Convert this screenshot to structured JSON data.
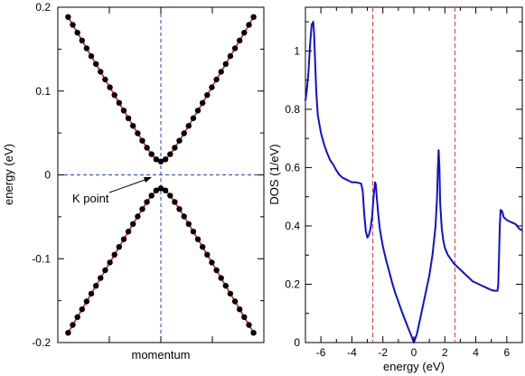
{
  "chart_data": [
    {
      "type": "scatter",
      "xlabel": "momentum",
      "ylabel": "energy  (eV)",
      "ylim": [
        -0.2,
        0.2
      ],
      "xlim": [
        -1,
        1
      ],
      "x_ticks_labeled": false,
      "y_ticks": [
        -0.2,
        -0.1,
        0,
        0.1,
        0.2
      ],
      "y_tick_labels": [
        "-0.2",
        "-0.1",
        "0",
        "0.1",
        "0.2"
      ],
      "gap": 0.016,
      "slope": 0.2085,
      "k_range": [
        -0.9,
        0.9
      ],
      "n_points": 41,
      "marker_color": "#000000",
      "line_color": "#e31a1c",
      "guide_color": "#1f3fd8",
      "annotation": "K point",
      "series": [
        {
          "band": "conduction",
          "sign": 1
        },
        {
          "band": "valence",
          "sign": -1
        }
      ]
    },
    {
      "type": "line",
      "xlabel": "energy (eV)",
      "ylabel": "DOS  (1/eV)",
      "xlim": [
        -7,
        7
      ],
      "ylim": [
        0,
        1.15
      ],
      "x_ticks": [
        -6,
        -4,
        -2,
        0,
        2,
        4,
        6
      ],
      "x_tick_labels": [
        "-6",
        "-4",
        "-2",
        "0",
        "2",
        "4",
        "6"
      ],
      "y_ticks": [
        0,
        0.2,
        0.4,
        0.6,
        0.8,
        1
      ],
      "y_tick_labels": [
        "0",
        "0.2",
        "0.4",
        "0.6",
        "0.8",
        "1"
      ],
      "line_color": "#1010d0",
      "vline_color": "#e83030",
      "vlines": [
        -2.65,
        2.65
      ],
      "series": {
        "x": [
          -7.0,
          -6.9,
          -6.8,
          -6.7,
          -6.6,
          -6.5,
          -6.45,
          -6.4,
          -6.3,
          -6.2,
          -6.0,
          -5.8,
          -5.6,
          -5.4,
          -5.2,
          -5.0,
          -4.8,
          -4.6,
          -4.4,
          -4.2,
          -4.0,
          -3.8,
          -3.6,
          -3.4,
          -3.3,
          -3.2,
          -3.1,
          -3.0,
          -2.9,
          -2.8,
          -2.7,
          -2.6,
          -2.5,
          -2.45,
          -2.4,
          -2.3,
          -2.2,
          -2.0,
          -1.8,
          -1.6,
          -1.4,
          -1.2,
          -1.0,
          -0.8,
          -0.6,
          -0.4,
          -0.2,
          0.0,
          0.2,
          0.4,
          0.6,
          0.8,
          1.0,
          1.2,
          1.4,
          1.5,
          1.55,
          1.6,
          1.65,
          1.7,
          1.8,
          1.9,
          2.0,
          2.2,
          2.4,
          2.6,
          2.8,
          3.0,
          3.2,
          3.4,
          3.6,
          3.8,
          4.0,
          4.2,
          4.4,
          4.6,
          4.8,
          5.0,
          5.2,
          5.4,
          5.45,
          5.5,
          5.55,
          5.6,
          5.7,
          5.8,
          6.0,
          6.2,
          6.4,
          6.6,
          6.8,
          7.0
        ],
        "y": [
          0.83,
          0.87,
          0.93,
          1.02,
          1.09,
          1.1,
          1.07,
          1.0,
          0.86,
          0.78,
          0.72,
          0.68,
          0.65,
          0.625,
          0.61,
          0.59,
          0.575,
          0.565,
          0.56,
          0.555,
          0.55,
          0.55,
          0.548,
          0.545,
          0.52,
          0.44,
          0.38,
          0.36,
          0.37,
          0.39,
          0.43,
          0.5,
          0.55,
          0.54,
          0.5,
          0.44,
          0.39,
          0.33,
          0.285,
          0.245,
          0.205,
          0.17,
          0.14,
          0.11,
          0.082,
          0.055,
          0.028,
          0.0,
          0.03,
          0.08,
          0.13,
          0.18,
          0.23,
          0.3,
          0.4,
          0.5,
          0.6,
          0.66,
          0.6,
          0.48,
          0.39,
          0.35,
          0.325,
          0.3,
          0.285,
          0.27,
          0.26,
          0.25,
          0.24,
          0.23,
          0.22,
          0.21,
          0.205,
          0.2,
          0.195,
          0.19,
          0.185,
          0.18,
          0.178,
          0.178,
          0.2,
          0.3,
          0.4,
          0.455,
          0.45,
          0.43,
          0.42,
          0.415,
          0.41,
          0.405,
          0.39,
          0.385
        ]
      }
    }
  ]
}
